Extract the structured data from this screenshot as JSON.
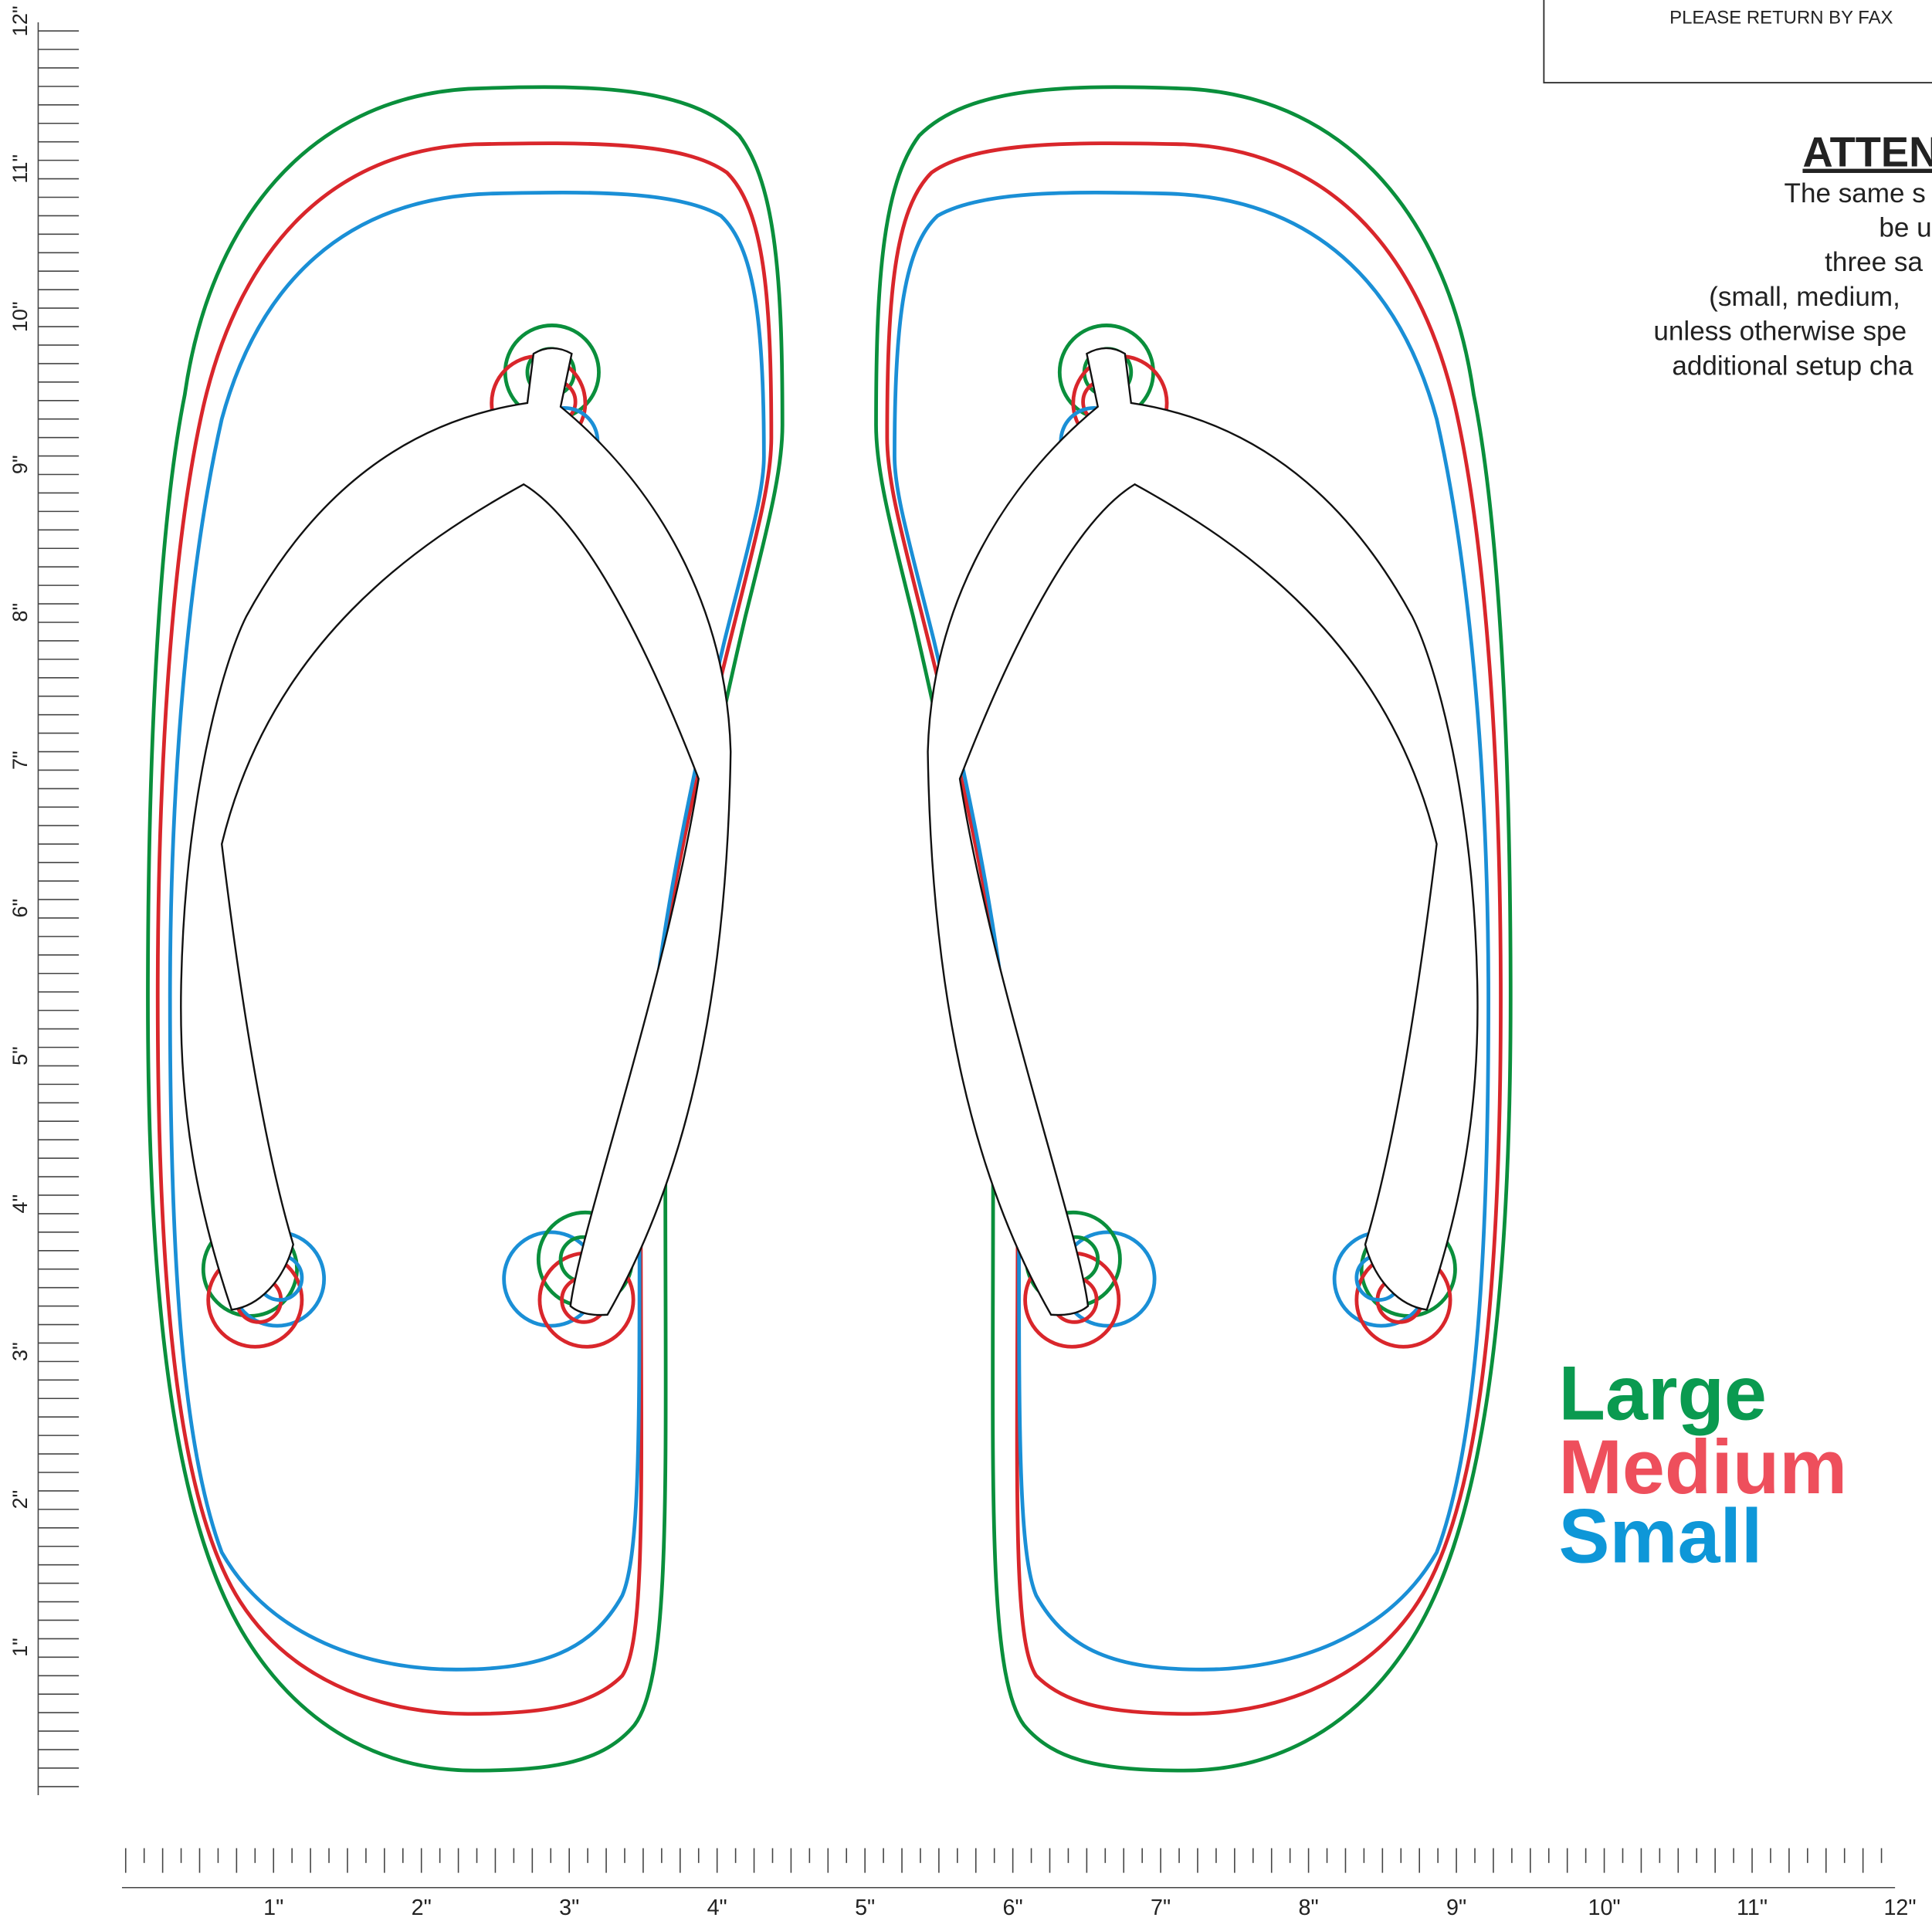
{
  "header": {
    "fax_note": "PLEASE RETURN BY FAX"
  },
  "attention": {
    "title": "ATTEN",
    "lines": [
      "The same s",
      "be u",
      "three sa",
      "(small, medium,",
      "unless otherwise spe",
      "additional setup cha"
    ]
  },
  "sizes": [
    "Large",
    "Medium",
    "Small"
  ],
  "vertical_ruler": {
    "labels": [
      "1\"",
      "2\"",
      "3\"",
      "4\"",
      "5\"",
      "6\"",
      "7\"",
      "8\"",
      "9\"",
      "10\"",
      "11\"",
      "12\""
    ]
  },
  "horizontal_ruler": {
    "labels": [
      "1\"",
      "2\"",
      "3\"",
      "4\"",
      "5\"",
      "6\"",
      "7\"",
      "8\"",
      "9\"",
      "10\"",
      "11\"",
      "12\""
    ]
  }
}
